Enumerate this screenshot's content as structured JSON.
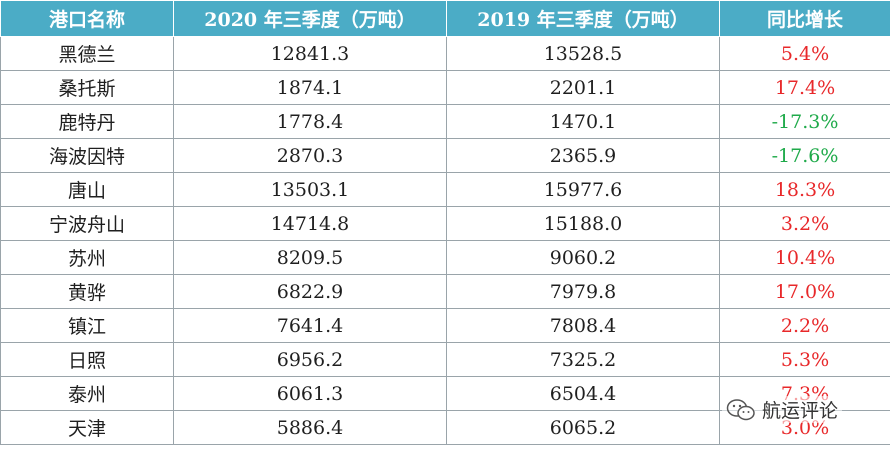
{
  "table": {
    "headers": {
      "port": "港口名称",
      "y2020": "2020 年三季度（万吨）",
      "y2019": "2019 年三季度（万吨）",
      "yoy": "同比增长"
    },
    "rows": [
      {
        "port": "黑德兰",
        "y2020": "12841.3",
        "y2019": "13528.5",
        "yoy": "5.4%",
        "trend": "pos"
      },
      {
        "port": "桑托斯",
        "y2020": "1874.1",
        "y2019": "2201.1",
        "yoy": "17.4%",
        "trend": "pos"
      },
      {
        "port": "鹿特丹",
        "y2020": "1778.4",
        "y2019": "1470.1",
        "yoy": "-17.3%",
        "trend": "neg"
      },
      {
        "port": "海波因特",
        "y2020": "2870.3",
        "y2019": "2365.9",
        "yoy": "-17.6%",
        "trend": "neg"
      },
      {
        "port": "唐山",
        "y2020": "13503.1",
        "y2019": "15977.6",
        "yoy": "18.3%",
        "trend": "pos"
      },
      {
        "port": "宁波舟山",
        "y2020": "14714.8",
        "y2019": "15188.0",
        "yoy": "3.2%",
        "trend": "pos"
      },
      {
        "port": "苏州",
        "y2020": "8209.5",
        "y2019": "9060.2",
        "yoy": "10.4%",
        "trend": "pos"
      },
      {
        "port": "黄骅",
        "y2020": "6822.9",
        "y2019": "7979.8",
        "yoy": "17.0%",
        "trend": "pos"
      },
      {
        "port": "镇江",
        "y2020": "7641.4",
        "y2019": "7808.4",
        "yoy": "2.2%",
        "trend": "pos"
      },
      {
        "port": "日照",
        "y2020": "6956.2",
        "y2019": "7325.2",
        "yoy": "5.3%",
        "trend": "pos"
      },
      {
        "port": "泰州",
        "y2020": "6061.3",
        "y2019": "6504.4",
        "yoy": "7.3%",
        "trend": "pos"
      },
      {
        "port": "天津",
        "y2020": "5886.4",
        "y2019": "6065.2",
        "yoy": "3.0%",
        "trend": "pos"
      }
    ]
  },
  "watermark": {
    "text": "航运评论",
    "icon": "wechat-icon"
  },
  "colors": {
    "header_bg": "#4bacc6",
    "positive": "#e8282a",
    "negative": "#1faa4a"
  }
}
